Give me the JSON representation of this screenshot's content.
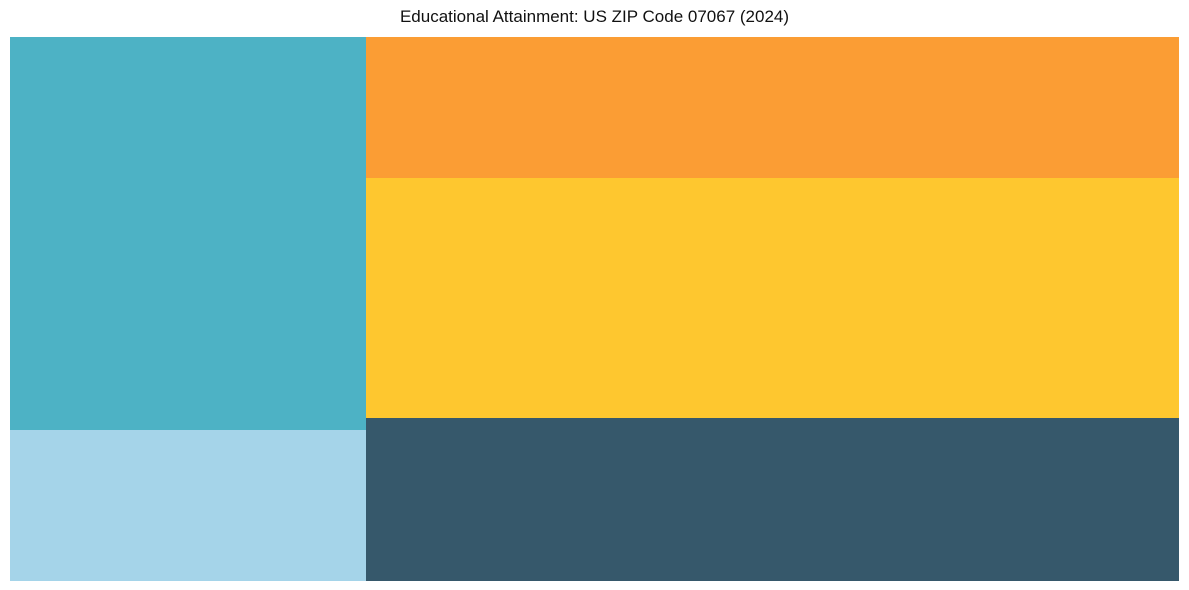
{
  "chart_data": {
    "type": "treemap",
    "title": "Educational Attainment: US ZIP Code 07067 (2024)",
    "labels_shown": false,
    "legend": "none",
    "background_color": "#ffffff",
    "columns": [
      {
        "side": "left",
        "width_pct": 30.45,
        "blocks": [
          {
            "id": "teal",
            "color": "#4DB2C5",
            "height_pct": 72.2,
            "area_pct_of_total": 22.0
          },
          {
            "id": "light-blue",
            "color": "#A5D4E9",
            "height_pct": 27.8,
            "area_pct_of_total": 8.4
          }
        ]
      },
      {
        "side": "right",
        "width_pct": 69.55,
        "blocks": [
          {
            "id": "orange",
            "color": "#FB9D34",
            "height_pct": 26.0,
            "area_pct_of_total": 18.1
          },
          {
            "id": "yellow",
            "color": "#FEC72F",
            "height_pct": 44.0,
            "area_pct_of_total": 30.6
          },
          {
            "id": "dark-slate",
            "color": "#36586B",
            "height_pct": 30.0,
            "area_pct_of_total": 20.9
          }
        ]
      }
    ]
  }
}
